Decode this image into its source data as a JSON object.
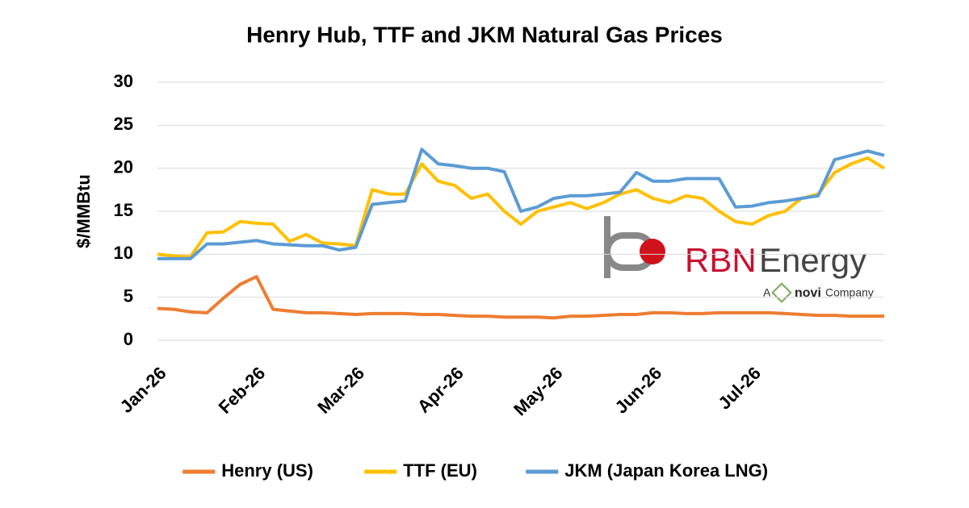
{
  "chart_data": {
    "type": "line",
    "title": "Henry Hub, TTF and JKM Natural Gas Prices",
    "y_label": "$/MMBtu",
    "categories": [
      "Jan-26",
      null,
      null,
      null,
      null,
      null,
      "Feb-26",
      null,
      null,
      null,
      null,
      null,
      "Mar-26",
      null,
      null,
      null,
      null,
      null,
      "Apr-26",
      null,
      null,
      null,
      null,
      null,
      "May-26",
      null,
      null,
      null,
      null,
      null,
      "Jun-26",
      null,
      null,
      null,
      null,
      null,
      "Jul-26",
      null,
      null,
      null,
      null,
      null,
      null,
      null,
      null
    ],
    "series": [
      {
        "name": "Henry (US)",
        "color": "#ed7d31",
        "values": [
          3.7,
          3.6,
          3.3,
          3.2,
          4.9,
          6.5,
          7.4,
          3.6,
          3.4,
          3.2,
          3.2,
          3.1,
          3.0,
          3.1,
          3.1,
          3.1,
          3.0,
          3.0,
          2.9,
          2.8,
          2.8,
          2.7,
          2.7,
          2.7,
          2.6,
          2.8,
          2.8,
          2.9,
          3.0,
          3.0,
          3.2,
          3.2,
          3.1,
          3.1,
          3.2,
          3.2,
          3.2,
          3.2,
          3.1,
          3.0,
          2.9,
          2.9,
          2.8,
          2.8,
          2.8
        ]
      },
      {
        "name": "TTF (EU)",
        "color": "#ffc000",
        "values": [
          10.0,
          9.8,
          9.7,
          12.5,
          12.6,
          13.8,
          13.6,
          13.5,
          11.5,
          12.3,
          11.3,
          11.2,
          11.0,
          17.5,
          17.0,
          17.0,
          20.5,
          18.5,
          18.0,
          16.5,
          17.0,
          15.0,
          13.5,
          15.0,
          15.5,
          16.0,
          15.3,
          16.0,
          17.0,
          17.5,
          16.5,
          16.0,
          16.8,
          16.5,
          15.0,
          13.8,
          13.5,
          14.5,
          15.0,
          16.5,
          17.0,
          19.5,
          20.5,
          21.2,
          20.0
        ]
      },
      {
        "name": "JKM (Japan Korea LNG)",
        "color": "#5b9bd5",
        "values": [
          9.5,
          9.5,
          9.5,
          11.2,
          11.2,
          11.4,
          11.6,
          11.2,
          11.1,
          11.0,
          11.0,
          10.5,
          10.8,
          15.8,
          16.0,
          16.2,
          22.2,
          20.5,
          20.3,
          20.0,
          20.0,
          19.6,
          15.0,
          15.5,
          16.5,
          16.8,
          16.8,
          17.0,
          17.2,
          19.5,
          18.5,
          18.5,
          18.8,
          18.8,
          18.8,
          15.5,
          15.6,
          16.0,
          16.2,
          16.5,
          16.8,
          21.0,
          21.5,
          22.0,
          21.5
        ]
      }
    ],
    "ylim": [
      0,
      30
    ],
    "yticks": [
      0,
      5,
      10,
      15,
      20,
      25,
      30
    ],
    "grid": true,
    "legend": "bottom",
    "logo": {
      "brand": "RBN",
      "name": "Energy",
      "tagline_pre": "A",
      "tagline_brand": "novi",
      "tagline_post": "Company"
    }
  }
}
